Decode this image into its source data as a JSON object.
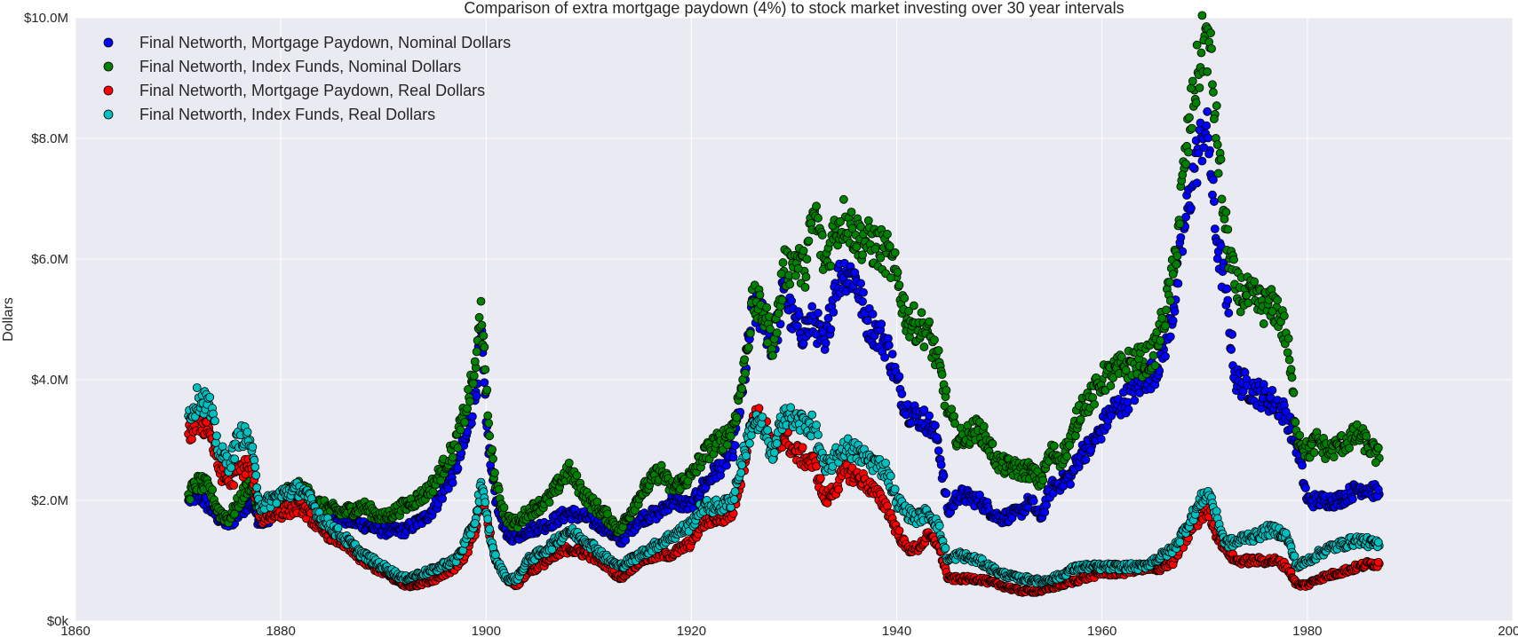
{
  "chart_data": {
    "type": "scatter",
    "title": "Comparison of extra mortgage paydown (4%) to stock market investing over 30 year intervals",
    "xlabel": "",
    "ylabel": "Dollars",
    "xlim": [
      1860,
      2000
    ],
    "ylim": [
      0,
      10000000
    ],
    "x_ticks": [
      1860,
      1880,
      1900,
      1920,
      1940,
      1960,
      1980,
      2000
    ],
    "y_ticks": [
      {
        "value": 0,
        "label": "$0k"
      },
      {
        "value": 2000000,
        "label": "$2.0M"
      },
      {
        "value": 4000000,
        "label": "$4.0M"
      },
      {
        "value": 6000000,
        "label": "$6.0M"
      },
      {
        "value": 8000000,
        "label": "$8.0M"
      },
      {
        "value": 10000000,
        "label": "$10.0M"
      }
    ],
    "grid": true,
    "legend_position": "top-left",
    "background": "#eaeaf2",
    "series": [
      {
        "name": "Final Networth, Mortgage Paydown, Nominal Dollars",
        "color": "#0000ff",
        "x": [
          1871,
          1872,
          1873,
          1874,
          1875,
          1876,
          1877,
          1878,
          1880,
          1882,
          1884,
          1886,
          1888,
          1890,
          1892,
          1893,
          1894,
          1895,
          1896,
          1897,
          1898,
          1899,
          1899.5,
          1900,
          1900.5,
          1901,
          1902,
          1903,
          1904,
          1906,
          1908,
          1910,
          1912,
          1913,
          1915,
          1917,
          1918,
          1920,
          1921,
          1922,
          1923,
          1924,
          1925,
          1926,
          1927,
          1928,
          1929,
          1930,
          1931,
          1932,
          1933,
          1934,
          1935,
          1936,
          1937,
          1938,
          1939,
          1940,
          1941,
          1942,
          1943,
          1944,
          1945,
          1946,
          1948,
          1950,
          1952,
          1953,
          1954,
          1955,
          1956,
          1957,
          1958,
          1959,
          1960,
          1961,
          1962,
          1963,
          1964,
          1965,
          1966,
          1967,
          1968,
          1969,
          1970,
          1970.5,
          1971,
          1972,
          1973,
          1974,
          1975,
          1976,
          1977,
          1978,
          1979,
          1980,
          1981,
          1982,
          1983,
          1984,
          1985,
          1986,
          1987
        ],
        "y": [
          2000000,
          2100000,
          1900000,
          1700000,
          1600000,
          1800000,
          2000000,
          1600000,
          1900000,
          2000000,
          1800000,
          1700000,
          1600000,
          1500000,
          1500000,
          1600000,
          1700000,
          1900000,
          2200000,
          2500000,
          3000000,
          3800000,
          4800000,
          3300000,
          2500000,
          2000000,
          1400000,
          1400000,
          1500000,
          1600000,
          1800000,
          1700000,
          1500000,
          1300000,
          1700000,
          1800000,
          2000000,
          1900000,
          2200000,
          2400000,
          2600000,
          2800000,
          3800000,
          5200000,
          5000000,
          4500000,
          5500000,
          4900000,
          4800000,
          5000000,
          4500000,
          5600000,
          5800000,
          5700000,
          5000000,
          4800000,
          4600000,
          4000000,
          3500000,
          3400000,
          3300000,
          3000000,
          1800000,
          2100000,
          2000000,
          1700000,
          1800000,
          2000000,
          1700000,
          2200000,
          2300000,
          2400000,
          2800000,
          2900000,
          3200000,
          3500000,
          3600000,
          3800000,
          4000000,
          4100000,
          4500000,
          5200000,
          6500000,
          7500000,
          8200000,
          7800000,
          6500000,
          5500000,
          4000000,
          3900000,
          3800000,
          3700000,
          3600000,
          3400000,
          2900000,
          2000000,
          2000000,
          2000000,
          2000000,
          2100000,
          2200000,
          2200000,
          2100000
        ]
      },
      {
        "name": "Final Networth, Index Funds, Nominal Dollars",
        "color": "#008000",
        "x": [
          1871,
          1872,
          1873,
          1874,
          1875,
          1876,
          1877,
          1878,
          1880,
          1882,
          1884,
          1886,
          1888,
          1890,
          1892,
          1893,
          1894,
          1895,
          1896,
          1897,
          1898,
          1899,
          1899.5,
          1900,
          1900.5,
          1901,
          1902,
          1903,
          1904,
          1906,
          1908,
          1910,
          1912,
          1913,
          1915,
          1917,
          1918,
          1920,
          1921,
          1922,
          1923,
          1924,
          1925,
          1926,
          1927,
          1928,
          1929,
          1930,
          1931,
          1932,
          1933,
          1934,
          1935,
          1936,
          1937,
          1938,
          1939,
          1940,
          1941,
          1942,
          1943,
          1944,
          1945,
          1946,
          1948,
          1950,
          1952,
          1953,
          1954,
          1955,
          1956,
          1957,
          1958,
          1959,
          1960,
          1961,
          1962,
          1963,
          1964,
          1965,
          1966,
          1967,
          1968,
          1969,
          1970,
          1970.5,
          1971,
          1972,
          1973,
          1974,
          1975,
          1976,
          1977,
          1978,
          1979,
          1980,
          1981,
          1982,
          1983,
          1984,
          1985,
          1986,
          1987
        ],
        "y": [
          2100000,
          2300000,
          2200000,
          1800000,
          1700000,
          2000000,
          2300000,
          1800000,
          2100000,
          2200000,
          1900000,
          1800000,
          1900000,
          1700000,
          1900000,
          2000000,
          2100000,
          2300000,
          2600000,
          2900000,
          3500000,
          4200000,
          5300000,
          3800000,
          2800000,
          2200000,
          1700000,
          1600000,
          1800000,
          2000000,
          2500000,
          2000000,
          1700000,
          1500000,
          2100000,
          2500000,
          2200000,
          2400000,
          2700000,
          2900000,
          3000000,
          3200000,
          4000000,
          5300000,
          5100000,
          4600000,
          5800000,
          6000000,
          5800000,
          6800000,
          5900000,
          6500000,
          6700000,
          6400000,
          6300000,
          6200000,
          6100000,
          5700000,
          5000000,
          4900000,
          4800000,
          4300000,
          3500000,
          3000000,
          3200000,
          2600000,
          2500000,
          2500000,
          2300000,
          2800000,
          2700000,
          3000000,
          3600000,
          3700000,
          4000000,
          4100000,
          4200000,
          4300000,
          4300000,
          4400000,
          5000000,
          5800000,
          7500000,
          8800000,
          9700000,
          9500000,
          8400000,
          6500000,
          5500000,
          5400000,
          5300000,
          5200000,
          5200000,
          4700000,
          3100000,
          2800000,
          3000000,
          2800000,
          2900000,
          3000000,
          3100000,
          2900000,
          2700000
        ]
      },
      {
        "name": "Final Networth, Mortgage Paydown, Real Dollars",
        "color": "#ff0000",
        "x": [
          1871,
          1872,
          1873,
          1874,
          1875,
          1876,
          1877,
          1878,
          1880,
          1882,
          1884,
          1886,
          1888,
          1890,
          1892,
          1893,
          1894,
          1895,
          1896,
          1897,
          1898,
          1899,
          1899.5,
          1900,
          1900.5,
          1901,
          1902,
          1903,
          1904,
          1906,
          1908,
          1910,
          1912,
          1913,
          1915,
          1917,
          1918,
          1920,
          1921,
          1922,
          1923,
          1924,
          1925,
          1926,
          1927,
          1928,
          1929,
          1930,
          1931,
          1932,
          1933,
          1934,
          1935,
          1936,
          1937,
          1938,
          1939,
          1940,
          1941,
          1942,
          1943,
          1944,
          1945,
          1946,
          1948,
          1950,
          1952,
          1953,
          1954,
          1955,
          1956,
          1957,
          1958,
          1959,
          1960,
          1961,
          1962,
          1963,
          1964,
          1965,
          1966,
          1967,
          1968,
          1969,
          1970,
          1970.5,
          1971,
          1972,
          1973,
          1974,
          1975,
          1976,
          1977,
          1978,
          1979,
          1980,
          1981,
          1982,
          1983,
          1984,
          1985,
          1986,
          1987
        ],
        "y": [
          3100000,
          3300000,
          3200000,
          2500000,
          2300000,
          2500000,
          2600000,
          1700000,
          1800000,
          1900000,
          1500000,
          1300000,
          1000000,
          800000,
          600000,
          600000,
          650000,
          700000,
          800000,
          900000,
          1100000,
          1500000,
          2100000,
          1800000,
          1300000,
          1000000,
          700000,
          600000,
          800000,
          1000000,
          1200000,
          1100000,
          900000,
          700000,
          1000000,
          1100000,
          1100000,
          1300000,
          1600000,
          1700000,
          1700000,
          1800000,
          2500000,
          3400000,
          3300000,
          2800000,
          3100000,
          2800000,
          2700000,
          2600000,
          2000000,
          2200000,
          2500000,
          2400000,
          2300000,
          2100000,
          1900000,
          1500000,
          1200000,
          1200000,
          1400000,
          1300000,
          700000,
          700000,
          700000,
          600000,
          500000,
          500000,
          500000,
          550000,
          600000,
          650000,
          700000,
          750000,
          800000,
          800000,
          800000,
          850000,
          850000,
          850000,
          900000,
          1000000,
          1300000,
          1600000,
          1800000,
          1800000,
          1500000,
          1200000,
          1000000,
          1000000,
          1000000,
          1000000,
          1000000,
          900000,
          600000,
          600000,
          700000,
          750000,
          800000,
          850000,
          900000,
          950000,
          950000
        ]
      },
      {
        "name": "Final Networth, Index Funds, Real Dollars",
        "color": "#00bfbf",
        "x": [
          1871,
          1872,
          1873,
          1874,
          1875,
          1876,
          1877,
          1878,
          1880,
          1882,
          1884,
          1886,
          1888,
          1890,
          1892,
          1893,
          1894,
          1895,
          1896,
          1897,
          1898,
          1899,
          1899.5,
          1900,
          1900.5,
          1901,
          1902,
          1903,
          1904,
          1906,
          1908,
          1910,
          1912,
          1913,
          1915,
          1917,
          1918,
          1920,
          1921,
          1922,
          1923,
          1924,
          1925,
          1926,
          1927,
          1928,
          1929,
          1930,
          1931,
          1932,
          1933,
          1934,
          1935,
          1936,
          1937,
          1938,
          1939,
          1940,
          1941,
          1942,
          1943,
          1944,
          1945,
          1946,
          1948,
          1950,
          1952,
          1953,
          1954,
          1955,
          1956,
          1957,
          1958,
          1959,
          1960,
          1961,
          1962,
          1963,
          1964,
          1965,
          1966,
          1967,
          1968,
          1969,
          1970,
          1970.5,
          1971,
          1972,
          1973,
          1974,
          1975,
          1976,
          1977,
          1978,
          1979,
          1980,
          1981,
          1982,
          1983,
          1984,
          1985,
          1986,
          1987
        ],
        "y": [
          3400000,
          3700000,
          3600000,
          2800000,
          2600000,
          3100000,
          3000000,
          1900000,
          2100000,
          2200000,
          1700000,
          1400000,
          1100000,
          900000,
          700000,
          750000,
          800000,
          850000,
          950000,
          1000000,
          1300000,
          1700000,
          2300000,
          1800000,
          1300000,
          1000000,
          700000,
          700000,
          1000000,
          1200000,
          1500000,
          1300000,
          1000000,
          900000,
          1100000,
          1300000,
          1400000,
          1600000,
          1900000,
          1900000,
          1900000,
          2000000,
          2700000,
          3300000,
          3200000,
          2700000,
          3500000,
          3300000,
          3300000,
          3200000,
          2500000,
          2700000,
          2900000,
          2800000,
          2700000,
          2600000,
          2500000,
          2000000,
          1800000,
          1700000,
          1800000,
          1600000,
          1000000,
          1100000,
          1000000,
          800000,
          700000,
          700000,
          650000,
          700000,
          750000,
          850000,
          900000,
          900000,
          900000,
          900000,
          900000,
          900000,
          900000,
          1000000,
          1100000,
          1200000,
          1500000,
          1800000,
          2100000,
          2100000,
          1800000,
          1300000,
          1300000,
          1400000,
          1400000,
          1500000,
          1500000,
          1400000,
          900000,
          1000000,
          1100000,
          1200000,
          1250000,
          1300000,
          1350000,
          1300000,
          1250000
        ]
      }
    ]
  }
}
